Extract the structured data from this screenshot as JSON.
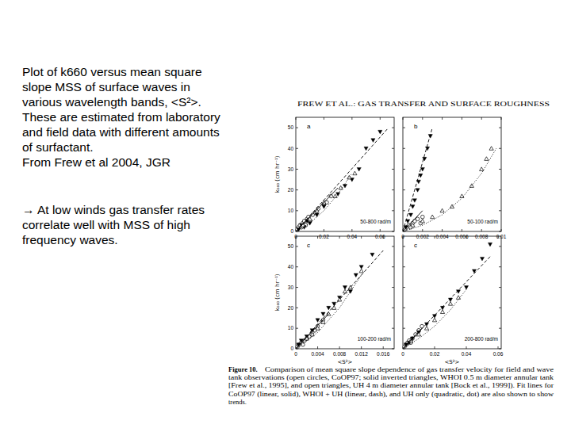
{
  "slide": {
    "text_lines": [
      "Plot of k660 versus mean square",
      "slope MSS of surface waves in",
      "various wavelength bands, <S²>.",
      "These are estimated from laboratory",
      "and field data with different amounts",
      "of surfactant.",
      "From Frew et al 2004, JGR"
    ],
    "note_lines": [
      "→  At low winds gas transfer rates",
      "correlate well with MSS of high",
      "frequency waves."
    ]
  },
  "figure": {
    "header": "FREW ET AL.: GAS TRANSFER AND SURFACE ROUGHNESS",
    "caption": {
      "label": "Figure 10.",
      "lines": [
        "Comparison of mean square slope dependence of gas transfer velocity for field and wave",
        "tank observations (open circles, CoOP97; solid inverted triangles, WHOI 0.5 m diameter annular tank",
        "[Frew et al., 1995], and open triangles, UH 4 m diameter annular tank [Bock et al., 1999]). Fit lines for",
        "CoOP97 (linear, solid), WHOI + UH (linear, dash), and UH only (quadratic, dot) are also shown to show",
        "trends."
      ]
    }
  },
  "chart_data": [
    {
      "type": "scatter",
      "label": "a",
      "annotation": "50-800 rad/m",
      "ylabel": "k₆₆₀ (cm hr⁻¹)",
      "tick_labels": true,
      "xlim": [
        0,
        0.07
      ],
      "xticks": [
        0,
        0.02,
        0.04,
        0.06
      ],
      "ylim": [
        0,
        55
      ],
      "yticks": [
        0,
        10,
        20,
        30,
        40,
        50
      ],
      "series": [
        {
          "type": "scatter",
          "marker": "circle-open",
          "color": "#000000",
          "x": [
            0.001,
            0.002,
            0.003,
            0.004,
            0.005,
            0.006,
            0.007,
            0.008,
            0.009,
            0.01,
            0.012,
            0.014,
            0.016,
            0.02,
            0.022,
            0.025
          ],
          "values": [
            1,
            2,
            3,
            2,
            4,
            5,
            3,
            6,
            7,
            5,
            8,
            9,
            11,
            13,
            14,
            17
          ]
        },
        {
          "type": "scatter",
          "marker": "triangle-down-filled",
          "color": "#000000",
          "x": [
            0.002,
            0.004,
            0.006,
            0.008,
            0.01,
            0.015,
            0.02,
            0.03,
            0.035,
            0.04,
            0.045,
            0.05,
            0.055,
            0.06
          ],
          "values": [
            1,
            3,
            2,
            5,
            4,
            8,
            12,
            18,
            22,
            25,
            30,
            40,
            44,
            48
          ]
        },
        {
          "type": "scatter",
          "marker": "triangle-up-open",
          "color": "#000000",
          "x": [
            0.005,
            0.01,
            0.015,
            0.02,
            0.028,
            0.032,
            0.038,
            0.042
          ],
          "values": [
            3,
            6,
            10,
            14,
            17,
            21,
            26,
            28
          ]
        },
        {
          "type": "line",
          "line_style": "solid",
          "color": "#000000",
          "x": [
            0,
            0.03
          ],
          "values": [
            0,
            21
          ]
        },
        {
          "type": "line",
          "line_style": "dashed",
          "color": "#000000",
          "x": [
            0,
            0.066
          ],
          "values": [
            0,
            50
          ]
        },
        {
          "type": "line",
          "line_style": "dotted",
          "color": "#000000",
          "x": [
            0,
            0.01,
            0.02,
            0.03,
            0.04
          ],
          "values": [
            0,
            4,
            10,
            18,
            28
          ]
        }
      ]
    },
    {
      "type": "scatter",
      "label": "b",
      "annotation": "50-100 rad/m",
      "tick_labels": "x",
      "xlim": [
        0,
        0.01
      ],
      "xticks": [
        0,
        0.002,
        0.004,
        0.006,
        0.008,
        0.01
      ],
      "ylim": [
        0,
        55
      ],
      "yticks": [
        0,
        10,
        20,
        30,
        40,
        50
      ],
      "series": [
        {
          "type": "scatter",
          "marker": "circle-open",
          "color": "#000000",
          "x": [
            0.0002,
            0.0004,
            0.0006,
            0.0008,
            0.001,
            0.0012,
            0.0015,
            0.0018,
            0.002
          ],
          "values": [
            1,
            2,
            3,
            2,
            4,
            5,
            6,
            4,
            7
          ]
        },
        {
          "type": "scatter",
          "marker": "triangle-down-filled",
          "color": "#000000",
          "x": [
            0.0003,
            0.0005,
            0.0008,
            0.001,
            0.0012,
            0.0015,
            0.0016,
            0.0018,
            0.002,
            0.0022,
            0.0025,
            0.0028
          ],
          "values": [
            2,
            5,
            8,
            12,
            15,
            20,
            24,
            27,
            30,
            35,
            40,
            46
          ]
        },
        {
          "type": "scatter",
          "marker": "triangle-up-open",
          "color": "#000000",
          "x": [
            0.001,
            0.002,
            0.003,
            0.004,
            0.005,
            0.006,
            0.007,
            0.008,
            0.0085,
            0.009
          ],
          "values": [
            3,
            5,
            7,
            10,
            12,
            17,
            22,
            30,
            35,
            40
          ]
        },
        {
          "type": "line",
          "line_style": "solid",
          "color": "#000000",
          "x": [
            0,
            0.002
          ],
          "values": [
            0,
            10
          ]
        },
        {
          "type": "line",
          "line_style": "dashed",
          "color": "#000000",
          "x": [
            0,
            0.003
          ],
          "values": [
            0,
            50
          ]
        },
        {
          "type": "line",
          "line_style": "dotted",
          "color": "#000000",
          "x": [
            0,
            0.002,
            0.004,
            0.006,
            0.008,
            0.0095
          ],
          "values": [
            0,
            3,
            8,
            16,
            28,
            40
          ]
        }
      ]
    },
    {
      "type": "scatter",
      "label": "c",
      "annotation": "100-200 rad/m",
      "ylabel": "k₆₆₀ (cm hr⁻¹)",
      "xlabel": "<S²>",
      "tick_labels": true,
      "xlim": [
        0,
        0.018
      ],
      "xticks": [
        0,
        0.004,
        0.008,
        0.012,
        0.016
      ],
      "ylim": [
        0,
        55
      ],
      "yticks": [
        0,
        10,
        20,
        30,
        40,
        50
      ],
      "series": [
        {
          "type": "scatter",
          "marker": "circle-open",
          "color": "#000000",
          "x": [
            0.0003,
            0.0006,
            0.001,
            0.0013,
            0.0016,
            0.002,
            0.0025,
            0.003,
            0.0035,
            0.004,
            0.005
          ],
          "values": [
            1,
            2,
            3,
            2,
            4,
            5,
            6,
            8,
            9,
            11,
            14
          ]
        },
        {
          "type": "scatter",
          "marker": "triangle-down-filled",
          "color": "#000000",
          "x": [
            0.0005,
            0.001,
            0.002,
            0.003,
            0.004,
            0.005,
            0.006,
            0.007,
            0.008,
            0.009,
            0.01,
            0.011,
            0.012,
            0.014
          ],
          "values": [
            2,
            4,
            6,
            9,
            14,
            17,
            20,
            22,
            25,
            30,
            28,
            36,
            40,
            46
          ]
        },
        {
          "type": "scatter",
          "marker": "triangle-up-open",
          "color": "#000000",
          "x": [
            0.002,
            0.003,
            0.004,
            0.005,
            0.006,
            0.007,
            0.008,
            0.009,
            0.01,
            0.012
          ],
          "values": [
            5,
            7,
            10,
            13,
            17,
            20,
            24,
            28,
            30,
            38
          ]
        },
        {
          "type": "line",
          "line_style": "solid",
          "color": "#000000",
          "x": [
            0,
            0.006
          ],
          "values": [
            0,
            17
          ]
        },
        {
          "type": "line",
          "line_style": "dashed",
          "color": "#000000",
          "x": [
            0,
            0.016
          ],
          "values": [
            0,
            48
          ]
        },
        {
          "type": "line",
          "line_style": "dotted",
          "color": "#000000",
          "x": [
            0,
            0.004,
            0.008,
            0.012
          ],
          "values": [
            0,
            8,
            20,
            36
          ]
        }
      ]
    },
    {
      "type": "scatter",
      "label": "c",
      "annotation": "200-800 rad/m",
      "xlabel": "<S²>",
      "tick_labels": "x",
      "xlim": [
        0,
        0.062
      ],
      "xticks": [
        0,
        0.02,
        0.04,
        0.06
      ],
      "ylim": [
        0,
        55
      ],
      "yticks": [
        0,
        10,
        20,
        30,
        40,
        50
      ],
      "series": [
        {
          "type": "scatter",
          "marker": "circle-open",
          "color": "#000000",
          "x": [
            0.001,
            0.002,
            0.003,
            0.004,
            0.005,
            0.006,
            0.008,
            0.01,
            0.012
          ],
          "values": [
            1,
            2,
            3,
            4,
            3,
            5,
            7,
            9,
            11
          ]
        },
        {
          "type": "scatter",
          "marker": "triangle-down-filled",
          "color": "#000000",
          "x": [
            0.002,
            0.004,
            0.006,
            0.01,
            0.015,
            0.02,
            0.025,
            0.03,
            0.035,
            0.04,
            0.045,
            0.05,
            0.055
          ],
          "values": [
            2,
            3,
            5,
            8,
            12,
            16,
            20,
            24,
            28,
            30,
            38,
            44,
            51
          ]
        },
        {
          "type": "scatter",
          "marker": "triangle-up-open",
          "color": "#000000",
          "x": [
            0.005,
            0.01,
            0.015,
            0.02,
            0.025,
            0.03,
            0.035
          ],
          "values": [
            4,
            7,
            10,
            14,
            18,
            22,
            25
          ]
        },
        {
          "type": "line",
          "line_style": "solid",
          "color": "#000000",
          "x": [
            0,
            0.012
          ],
          "values": [
            0,
            10
          ]
        },
        {
          "type": "line",
          "line_style": "dashed",
          "color": "#000000",
          "x": [
            0,
            0.055
          ],
          "values": [
            0,
            45
          ]
        },
        {
          "type": "line",
          "line_style": "dotted",
          "color": "#000000",
          "x": [
            0,
            0.01,
            0.02,
            0.03,
            0.04
          ],
          "values": [
            0,
            5,
            11,
            19,
            29
          ]
        }
      ]
    }
  ]
}
